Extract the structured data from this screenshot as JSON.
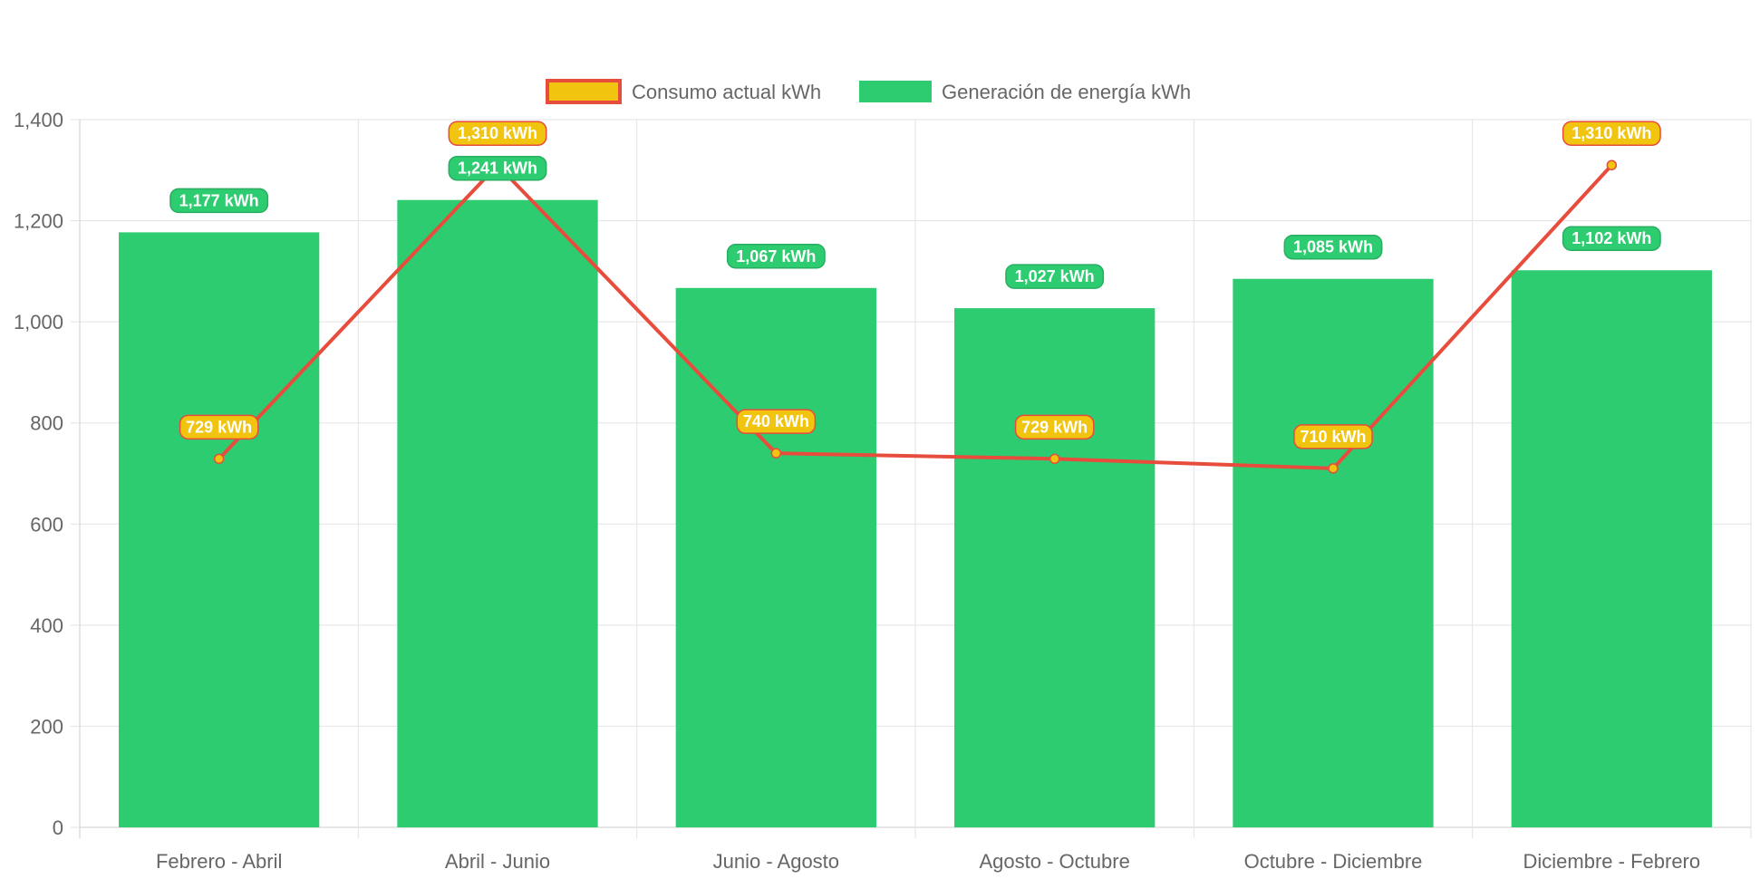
{
  "chart_data": {
    "type": "bar",
    "categories": [
      "Febrero - Abril",
      "Abril - Junio",
      "Junio - Agosto",
      "Agosto - Octubre",
      "Octubre - Diciembre",
      "Diciembre - Febrero"
    ],
    "series": [
      {
        "name": "Consumo actual kWh",
        "type": "line",
        "values": [
          729,
          1310,
          740,
          729,
          710,
          1310
        ],
        "labels": [
          "729 kWh",
          "1,310 kWh",
          "740 kWh",
          "729 kWh",
          "710 kWh",
          "1,310 kWh"
        ],
        "color": "#f1c40f",
        "border_color": "#e74c3c"
      },
      {
        "name": "Generación de energía kWh",
        "type": "bar",
        "values": [
          1177,
          1241,
          1067,
          1027,
          1085,
          1102
        ],
        "labels": [
          "1,177 kWh",
          "1,241 kWh",
          "1,067 kWh",
          "1,027 kWh",
          "1,085 kWh",
          "1,102 kWh"
        ],
        "color": "#2ecc71",
        "border_color": "#27ae60"
      }
    ],
    "ylim": [
      0,
      1400
    ],
    "yticks": [
      0,
      200,
      400,
      600,
      800,
      1000,
      1200,
      1400
    ],
    "ytick_labels": [
      "0",
      "200",
      "400",
      "600",
      "800",
      "1,000",
      "1,200",
      "1,400"
    ],
    "grid": true,
    "legend_position": "top-center",
    "title": "",
    "xlabel": "",
    "ylabel": ""
  }
}
